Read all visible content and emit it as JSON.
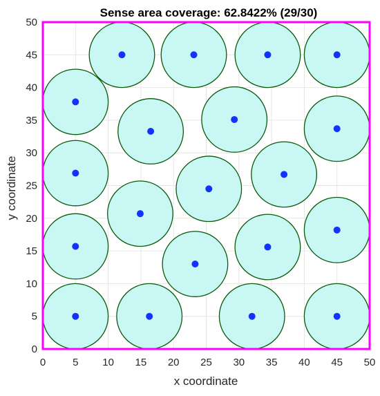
{
  "chart_data": {
    "type": "scatter",
    "title": "Sense area coverage: 62.8422% (29/30)",
    "xlabel": "x coordinate",
    "ylabel": "y coordinate",
    "xlim": [
      0,
      50
    ],
    "ylim": [
      0,
      50
    ],
    "xticks": [
      0,
      5,
      10,
      15,
      20,
      25,
      30,
      35,
      40,
      45,
      50
    ],
    "yticks": [
      0,
      5,
      10,
      15,
      20,
      25,
      30,
      35,
      40,
      45,
      50
    ],
    "grid": true,
    "sensing_radius": 5,
    "nodes": [
      {
        "x": 12.1,
        "y": 45.0
      },
      {
        "x": 23.1,
        "y": 45.0
      },
      {
        "x": 34.4,
        "y": 45.0
      },
      {
        "x": 45.0,
        "y": 45.0
      },
      {
        "x": 5.0,
        "y": 37.8
      },
      {
        "x": 29.3,
        "y": 35.1
      },
      {
        "x": 16.5,
        "y": 33.3
      },
      {
        "x": 45.0,
        "y": 33.7
      },
      {
        "x": 5.0,
        "y": 26.9
      },
      {
        "x": 36.9,
        "y": 26.7
      },
      {
        "x": 25.4,
        "y": 24.5
      },
      {
        "x": 14.9,
        "y": 20.7
      },
      {
        "x": 45.0,
        "y": 18.2
      },
      {
        "x": 5.0,
        "y": 15.7
      },
      {
        "x": 34.4,
        "y": 15.6
      },
      {
        "x": 23.3,
        "y": 13.0
      },
      {
        "x": 5.0,
        "y": 5.0
      },
      {
        "x": 16.3,
        "y": 5.0
      },
      {
        "x": 32.0,
        "y": 5.0
      },
      {
        "x": 45.0,
        "y": 5.0
      }
    ]
  },
  "colors": {
    "circle_fill": "#c8f7f4",
    "circle_stroke": "#0a5a0a",
    "node": "#1432ff",
    "frame": "#ff00ff",
    "grid": "#e6e6e6",
    "axis_text": "#262626"
  }
}
